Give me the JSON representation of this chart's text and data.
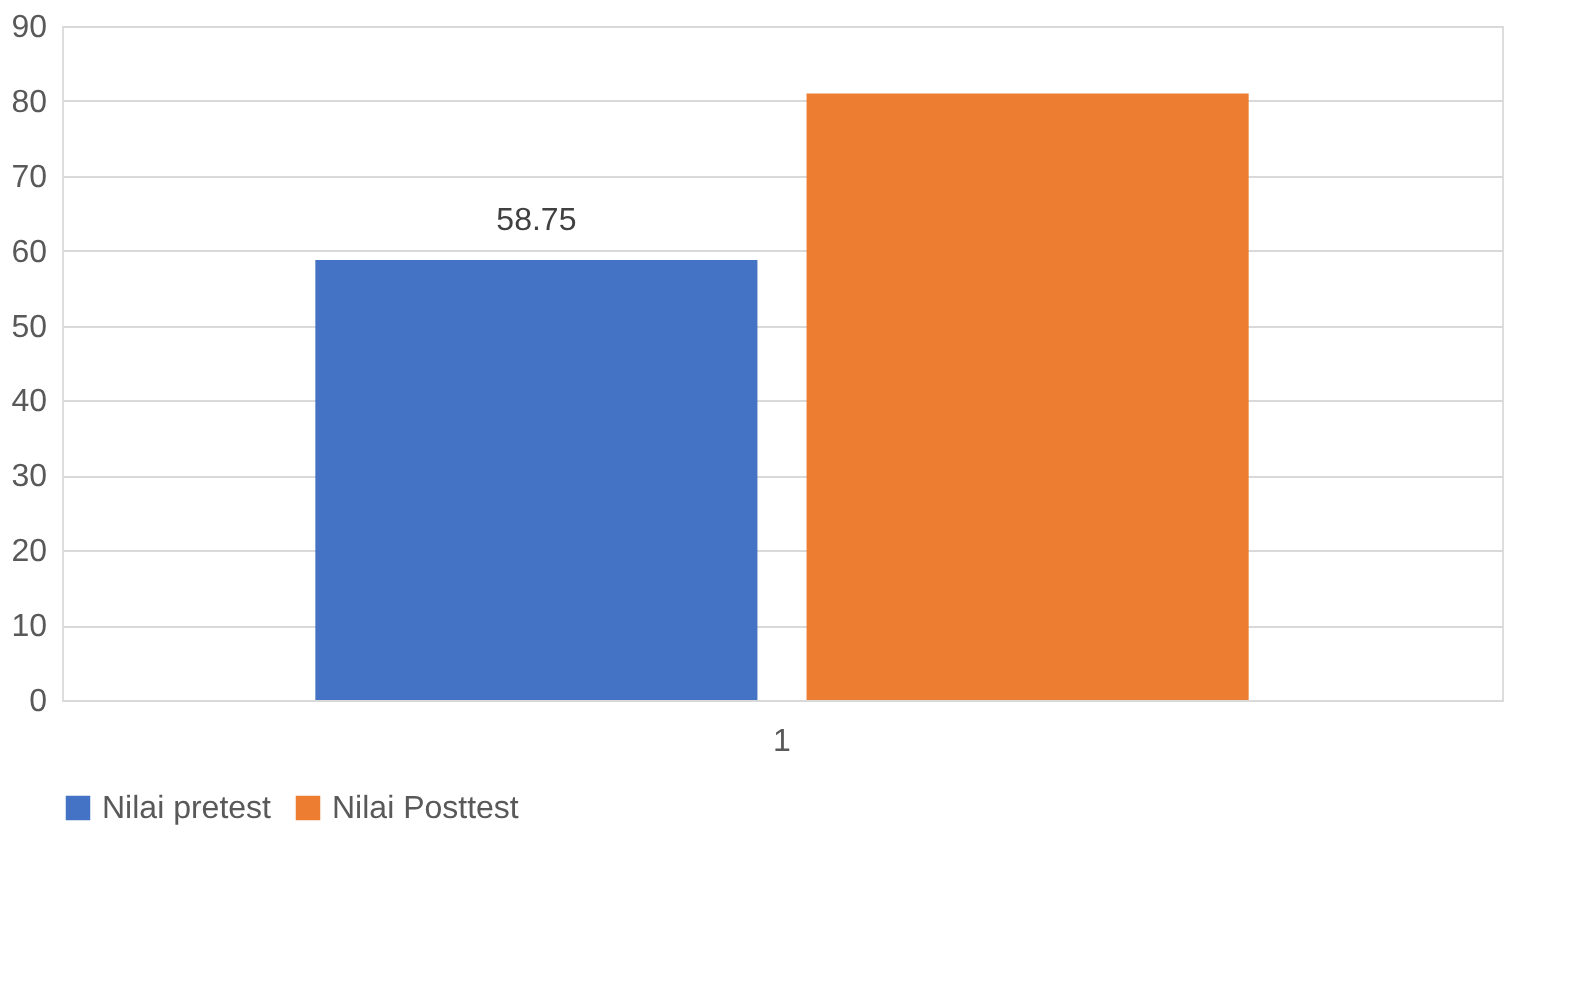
{
  "chart_data": {
    "type": "bar",
    "categories": [
      "1"
    ],
    "series": [
      {
        "name": "Nilai pretest",
        "color": "#4472c4",
        "values": [
          58.75
        ],
        "value_labels": [
          "58.75"
        ]
      },
      {
        "name": "Nilai Posttest",
        "color": "#ed7d31",
        "values": [
          81
        ]
      }
    ],
    "ylim": [
      0,
      90
    ],
    "yticks": [
      0,
      10,
      20,
      30,
      40,
      50,
      60,
      70,
      80,
      90
    ],
    "grid": "y",
    "legend": "bottom"
  }
}
